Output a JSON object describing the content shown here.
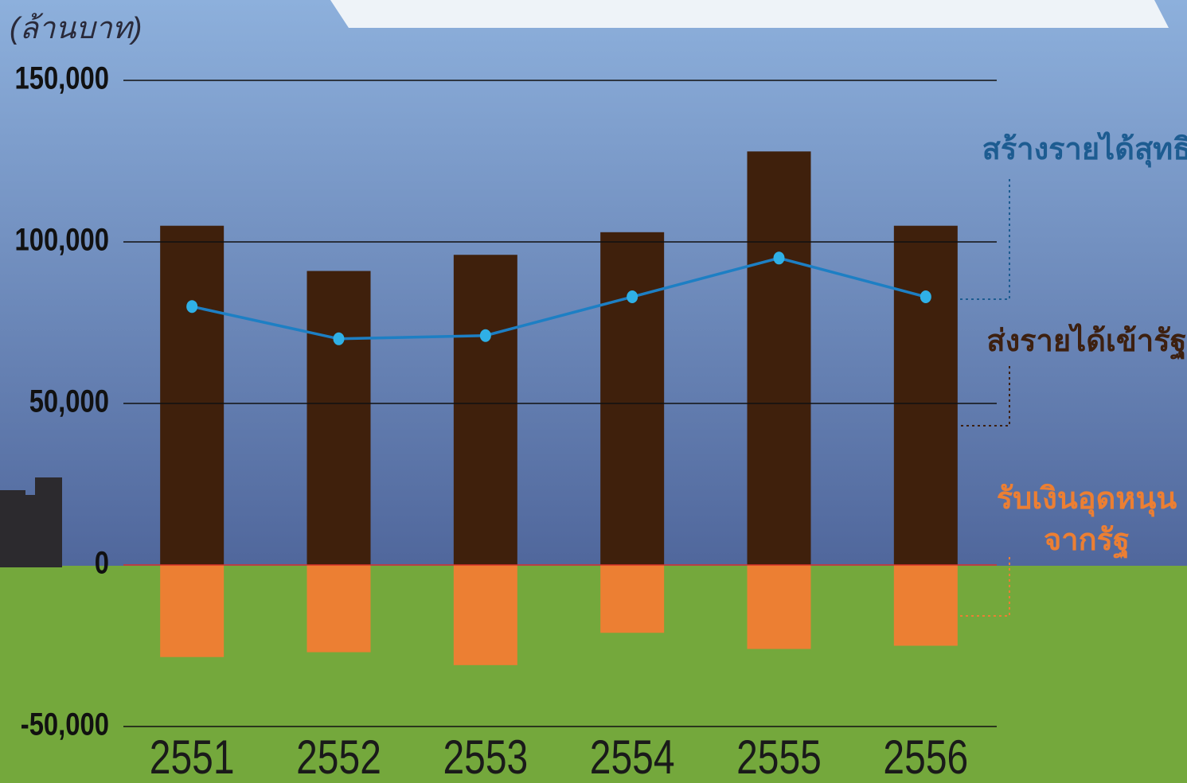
{
  "chart_data": {
    "type": "bar",
    "y_label": "(ล้านบาท)",
    "categories": [
      "2551",
      "2552",
      "2553",
      "2554",
      "2555",
      "2556"
    ],
    "series": [
      {
        "name": "ส่งรายได้เข้ารัฐ",
        "color": "#3f200c",
        "type": "bar",
        "values": [
          105000,
          91000,
          96000,
          103000,
          128000,
          105000
        ]
      },
      {
        "name": "รับเงินอุดหนุนจากรัฐ",
        "color": "#ec7f33",
        "type": "bar",
        "values": [
          -28500,
          -27000,
          -31000,
          -21000,
          -26000,
          -25000
        ]
      },
      {
        "name": "สร้างรายได้สุทธิ",
        "color": "#1d7fc4",
        "type": "line",
        "values": [
          80000,
          70000,
          71000,
          83000,
          95000,
          83000
        ]
      }
    ],
    "ylim": [
      -50000,
      150000
    ],
    "yticks": [
      {
        "value": -50000,
        "label": "-50,000"
      },
      0,
      {
        "value": 50000,
        "label": "50,000"
      },
      {
        "value": 100000,
        "label": "100,000"
      },
      {
        "value": 150000,
        "label": "150,000"
      }
    ],
    "grid": true
  }
}
